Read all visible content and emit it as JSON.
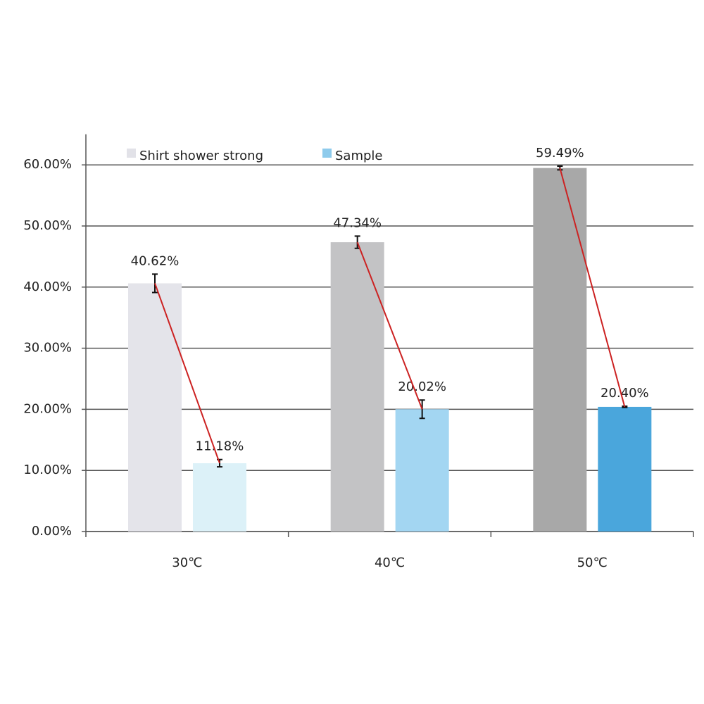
{
  "chart_data": {
    "type": "bar",
    "categories": [
      "30℃",
      "40℃",
      "50℃"
    ],
    "series": [
      {
        "name": "Shirt shower strong",
        "color": "#e2e2e8",
        "colors": [
          "#e4e4ea",
          "#c3c3c5",
          "#a8a8a8"
        ],
        "values": [
          40.62,
          47.34,
          59.49
        ],
        "value_labels": [
          "40.62%",
          "47.34%",
          "59.49%"
        ],
        "errors": [
          1.5,
          1.0,
          0.3
        ]
      },
      {
        "name": "Sample",
        "color": "#8ecbec",
        "colors": [
          "#dcf1f8",
          "#a3d6f2",
          "#4aa6dc"
        ],
        "values": [
          11.18,
          20.02,
          20.4
        ],
        "value_labels": [
          "11.18%",
          "20.02%",
          "20.40%"
        ],
        "errors": [
          0.6,
          1.5,
          0.1
        ]
      }
    ],
    "connector_color": "#cc2222",
    "ylim": [
      0,
      65
    ],
    "yticks": [
      {
        "value": 0,
        "label": "0.00%"
      },
      {
        "value": 10,
        "label": "10.00%"
      },
      {
        "value": 20,
        "label": "20.00%"
      },
      {
        "value": 30,
        "label": "30.00%"
      },
      {
        "value": 40,
        "label": "40.00%"
      },
      {
        "value": 50,
        "label": "50.00%"
      },
      {
        "value": 60,
        "label": "60.00%"
      }
    ],
    "grid": true,
    "legend": "top-left"
  }
}
